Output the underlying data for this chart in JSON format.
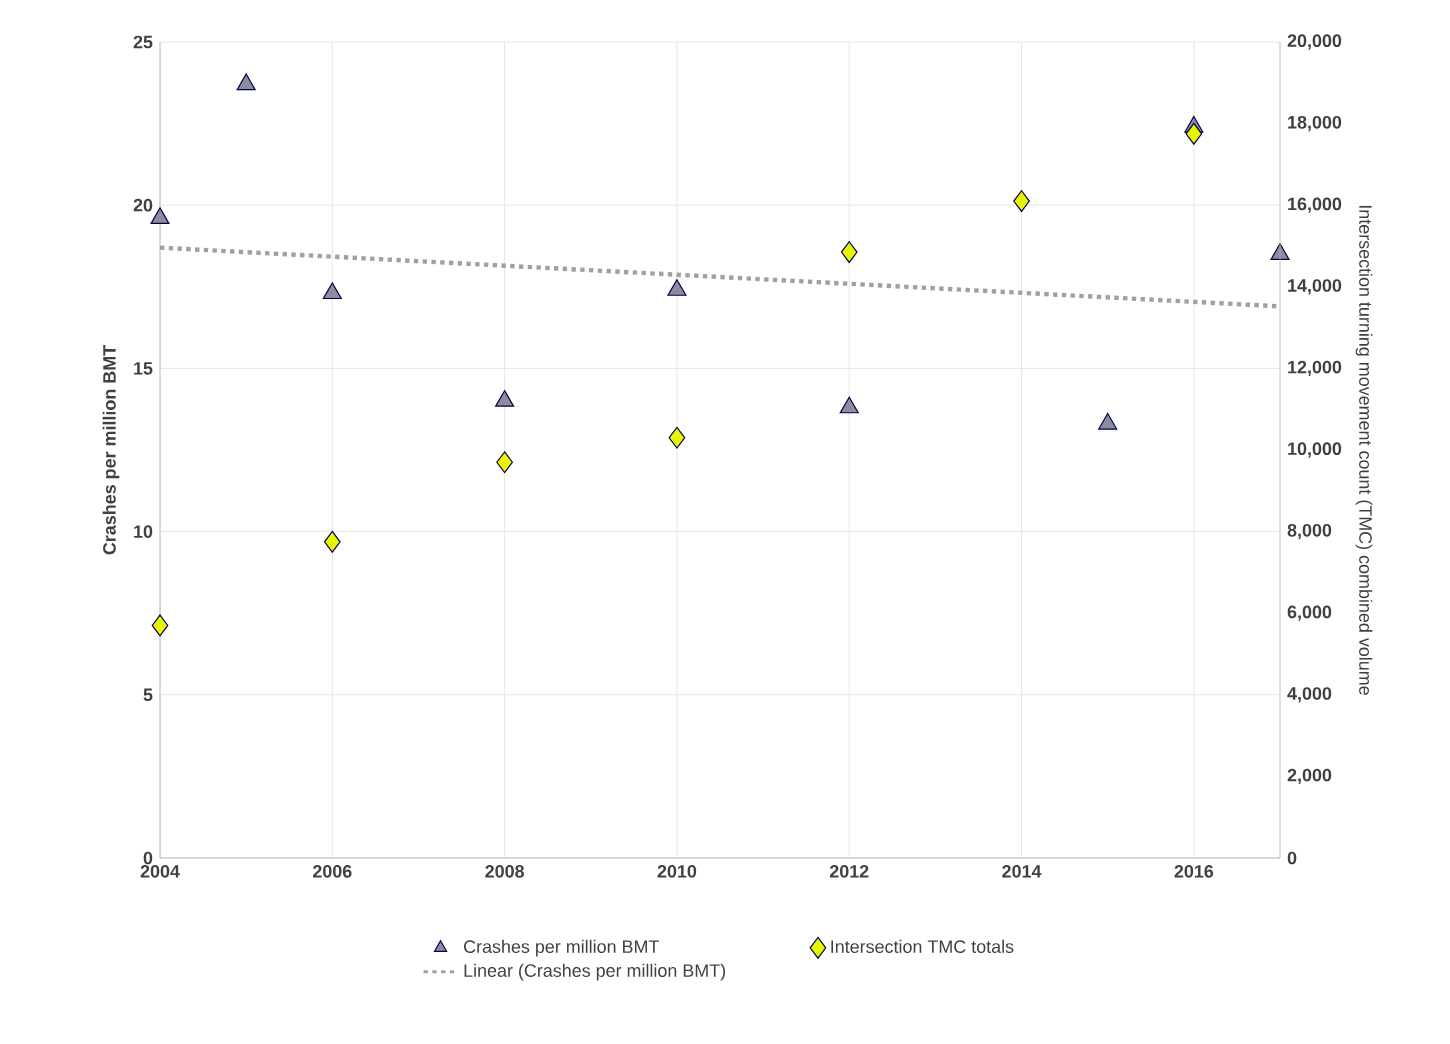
{
  "chart_data": {
    "type": "scatter",
    "ylabel": "Crashes per million BMT",
    "y2label": "Intersection turning movement count (TMC) combined volume",
    "xlim": [
      2004,
      2017
    ],
    "xticks": [
      2004,
      2006,
      2008,
      2010,
      2012,
      2014,
      2016
    ],
    "ylim": [
      0,
      25
    ],
    "yticks": [
      0,
      5,
      10,
      15,
      20,
      25
    ],
    "y2lim": [
      0,
      20000
    ],
    "y2ticks": [
      {
        "value": 0,
        "label": "0"
      },
      {
        "value": 2000,
        "label": "2,000"
      },
      {
        "value": 4000,
        "label": "4,000"
      },
      {
        "value": 6000,
        "label": "6,000"
      },
      {
        "value": 8000,
        "label": "8,000"
      },
      {
        "value": 10000,
        "label": "10,000"
      },
      {
        "value": 12000,
        "label": "12,000"
      },
      {
        "value": 14000,
        "label": "14,000"
      },
      {
        "value": 16000,
        "label": "16,000"
      },
      {
        "value": 18000,
        "label": "18,000"
      },
      {
        "value": 20000,
        "label": "20,000"
      }
    ],
    "grid": true,
    "legend": "bottom",
    "series": [
      {
        "name": "Crashes per million BMT",
        "marker": "triangle",
        "color": "#8c8c9c",
        "x": [
          2004,
          2005,
          2006,
          2008,
          2010,
          2012,
          2015,
          2016,
          2017
        ],
        "values": [
          19.6,
          23.7,
          17.3,
          14.0,
          17.4,
          13.8,
          13.3,
          22.4,
          18.5
        ]
      },
      {
        "name": "Intersection TMC totals",
        "marker": "diamond",
        "axis": "y2",
        "color": "#e8f500",
        "x": [
          2004,
          2006,
          2008,
          2010,
          2012,
          2014,
          2016
        ],
        "values": [
          5700,
          7750,
          9700,
          10300,
          14850,
          16100,
          17750
        ]
      },
      {
        "name": "Linear (Crashes per million BMT)",
        "type": "line",
        "line_style": "dotted",
        "color": "#a0a0a0",
        "x": [
          2004,
          2017
        ],
        "values": [
          18.7,
          16.9
        ]
      }
    ]
  }
}
